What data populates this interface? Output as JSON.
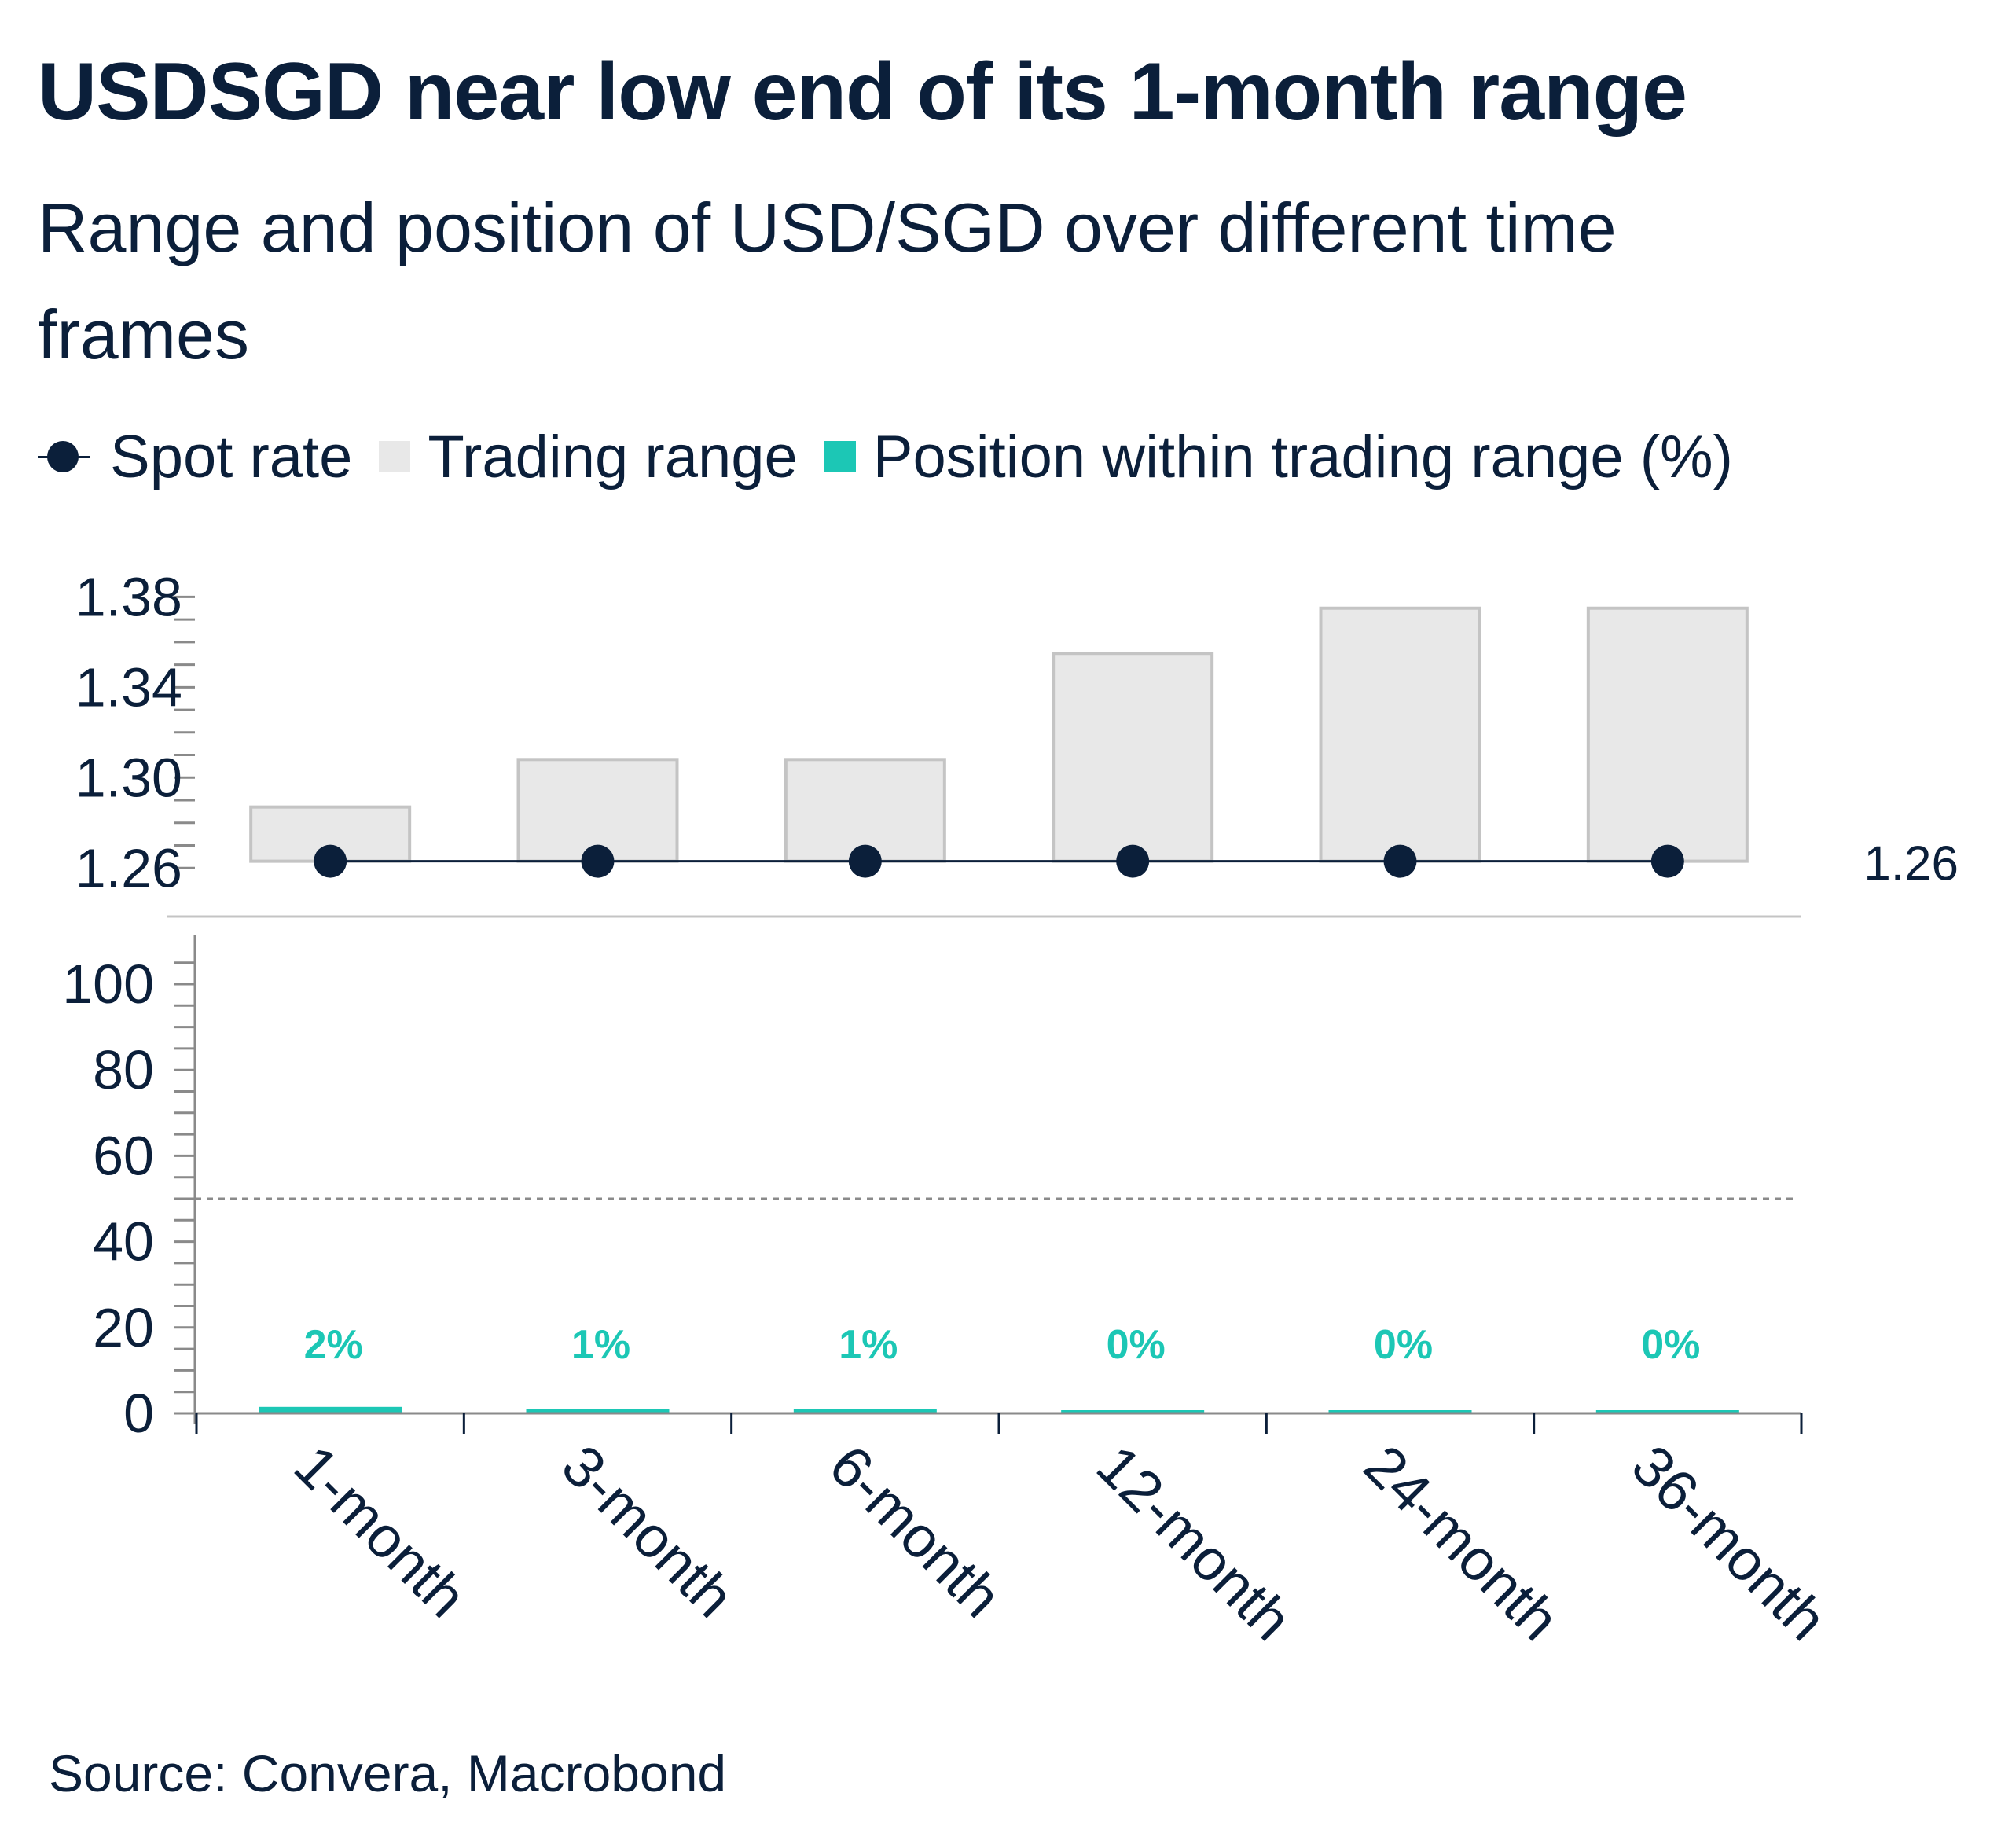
{
  "header": {
    "title": "USDSGD near low end of its 1-month range",
    "subtitle": "Range and position of USD/SGD over different time frames"
  },
  "legend": {
    "spot": "Spot rate",
    "range": "Trading range",
    "position": "Position within trading range (%)"
  },
  "footer": {
    "source": "Source: Convera, Macrobond"
  },
  "colors": {
    "navy": "#0b1f3a",
    "range_fill": "#e8e8e8",
    "range_stroke": "#c4c4c4",
    "teal": "#1cc7b5",
    "axis": "#8a8a8a"
  },
  "chart_data": [
    {
      "type": "bar",
      "panel": "top",
      "categories": [
        "1-month",
        "3-month",
        "6-month",
        "12-month",
        "24-month",
        "36-month"
      ],
      "series": [
        {
          "name": "Trading range",
          "low": [
            1.263,
            1.263,
            1.263,
            1.263,
            1.263,
            1.263
          ],
          "high": [
            1.287,
            1.308,
            1.308,
            1.355,
            1.375,
            1.375
          ]
        },
        {
          "name": "Spot rate",
          "values": [
            1.263,
            1.263,
            1.263,
            1.263,
            1.263,
            1.263
          ]
        }
      ],
      "yticks": [
        "1.26",
        "1.30",
        "1.34",
        "1.38"
      ],
      "ylim": [
        1.258,
        1.385
      ],
      "end_label": "1.26"
    },
    {
      "type": "bar",
      "panel": "bottom",
      "categories": [
        "1-month",
        "3-month",
        "6-month",
        "12-month",
        "24-month",
        "36-month"
      ],
      "series": [
        {
          "name": "Position within trading range (%)",
          "values": [
            1.5,
            1,
            1,
            0.4,
            0.4,
            0.4
          ],
          "labels": [
            "2%",
            "1%",
            "1%",
            "0%",
            "0%",
            "0%"
          ]
        }
      ],
      "yticks": [
        "0",
        "20",
        "40",
        "60",
        "80",
        "100"
      ],
      "ylim": [
        0,
        110
      ],
      "reference_line": 50
    }
  ]
}
